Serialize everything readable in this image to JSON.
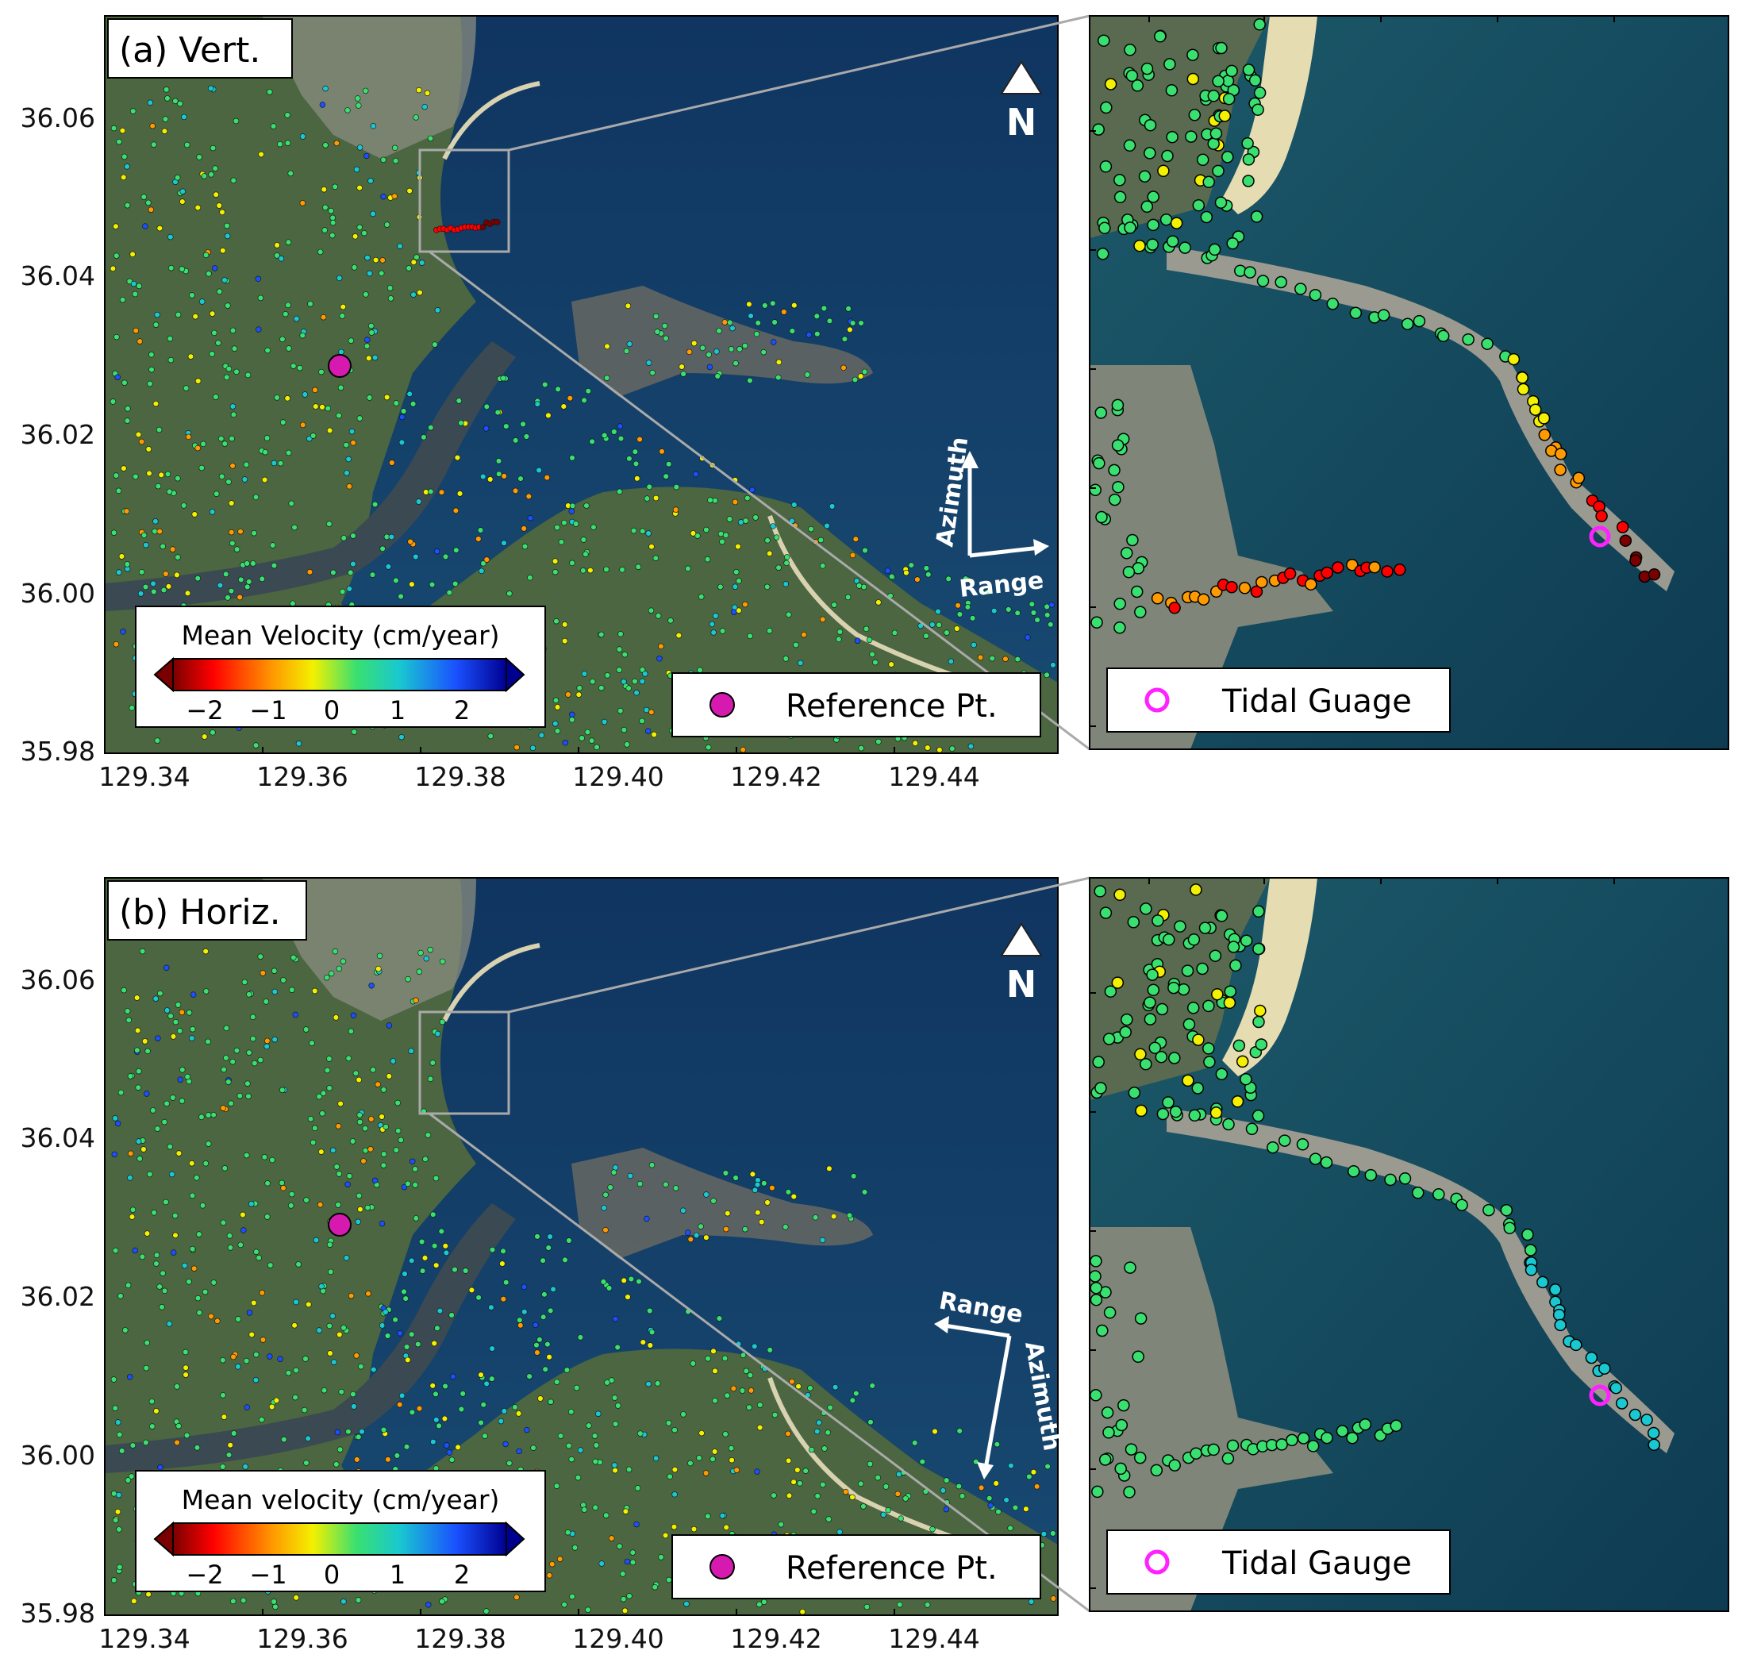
{
  "axes": {
    "x_ticks": [
      "129.34",
      "129.36",
      "129.38",
      "129.40",
      "129.42",
      "129.44"
    ],
    "y_ticks": [
      "36.06",
      "36.04",
      "36.02",
      "36.00",
      "35.98"
    ]
  },
  "panels": [
    {
      "label": "(a) Vert.",
      "north": "N",
      "arrows": [
        "Azimuth",
        "Range"
      ],
      "colorbar": {
        "title": "Mean Velocity (cm/year)",
        "ticks": [
          "−2",
          "−1",
          "0",
          "1",
          "2"
        ]
      },
      "legend_ref": "Reference Pt.",
      "legend_tide": "Tidal Guage"
    },
    {
      "label": "(b) Horiz.",
      "north": "N",
      "arrows": [
        "Range",
        "Azimuth"
      ],
      "colorbar": {
        "title": "Mean velocity (cm/year)",
        "ticks": [
          "−2",
          "−1",
          "0",
          "1",
          "2"
        ]
      },
      "legend_ref": "Reference Pt.",
      "legend_tide": "Tidal Gauge"
    }
  ],
  "colors": {
    "sea": "#123e6a",
    "land": "#4e6a3f",
    "reference_point": "#d61ab0",
    "tidal_gauge": "#ff22ff",
    "colormap": [
      "#7a0000",
      "#ff0000",
      "#ff9a00",
      "#f3f000",
      "#39e070",
      "#19c8d0",
      "#1a50ff",
      "#000090"
    ]
  },
  "chart_data": [
    {
      "type": "scatter",
      "title": "(a) Vert.",
      "xlabel": "",
      "ylabel": "",
      "x_ticks": [
        129.34,
        129.36,
        129.38,
        129.4,
        129.42,
        129.44
      ],
      "y_ticks": [
        36.06,
        36.04,
        36.02,
        36.0,
        35.98
      ],
      "xlim": [
        129.339,
        129.459
      ],
      "ylim": [
        35.98,
        36.073
      ],
      "colorbar": {
        "label": "Mean Velocity (cm/year)",
        "range": [
          -2.7,
          2.7
        ]
      },
      "reference_point": {
        "lon": 129.364,
        "lat": 36.029
      },
      "inset_box": {
        "lon": [
          129.379,
          129.39
        ],
        "lat": [
          36.045,
          36.057
        ]
      },
      "tidal_gauge_velocity_estimate": -2.0
    },
    {
      "type": "scatter",
      "title": "(b) Horiz.",
      "xlabel": "",
      "ylabel": "",
      "x_ticks": [
        129.34,
        129.36,
        129.38,
        129.4,
        129.42,
        129.44
      ],
      "y_ticks": [
        36.06,
        36.04,
        36.02,
        36.0,
        35.98
      ],
      "xlim": [
        129.339,
        129.459
      ],
      "ylim": [
        35.98,
        36.073
      ],
      "colorbar": {
        "label": "Mean velocity (cm/year)",
        "range": [
          -2.7,
          2.7
        ]
      },
      "reference_point": {
        "lon": 129.364,
        "lat": 36.029
      },
      "inset_box": {
        "lon": [
          129.379,
          129.39
        ],
        "lat": [
          36.045,
          36.057
        ]
      },
      "tidal_gauge_velocity_estimate": 0.3
    }
  ]
}
